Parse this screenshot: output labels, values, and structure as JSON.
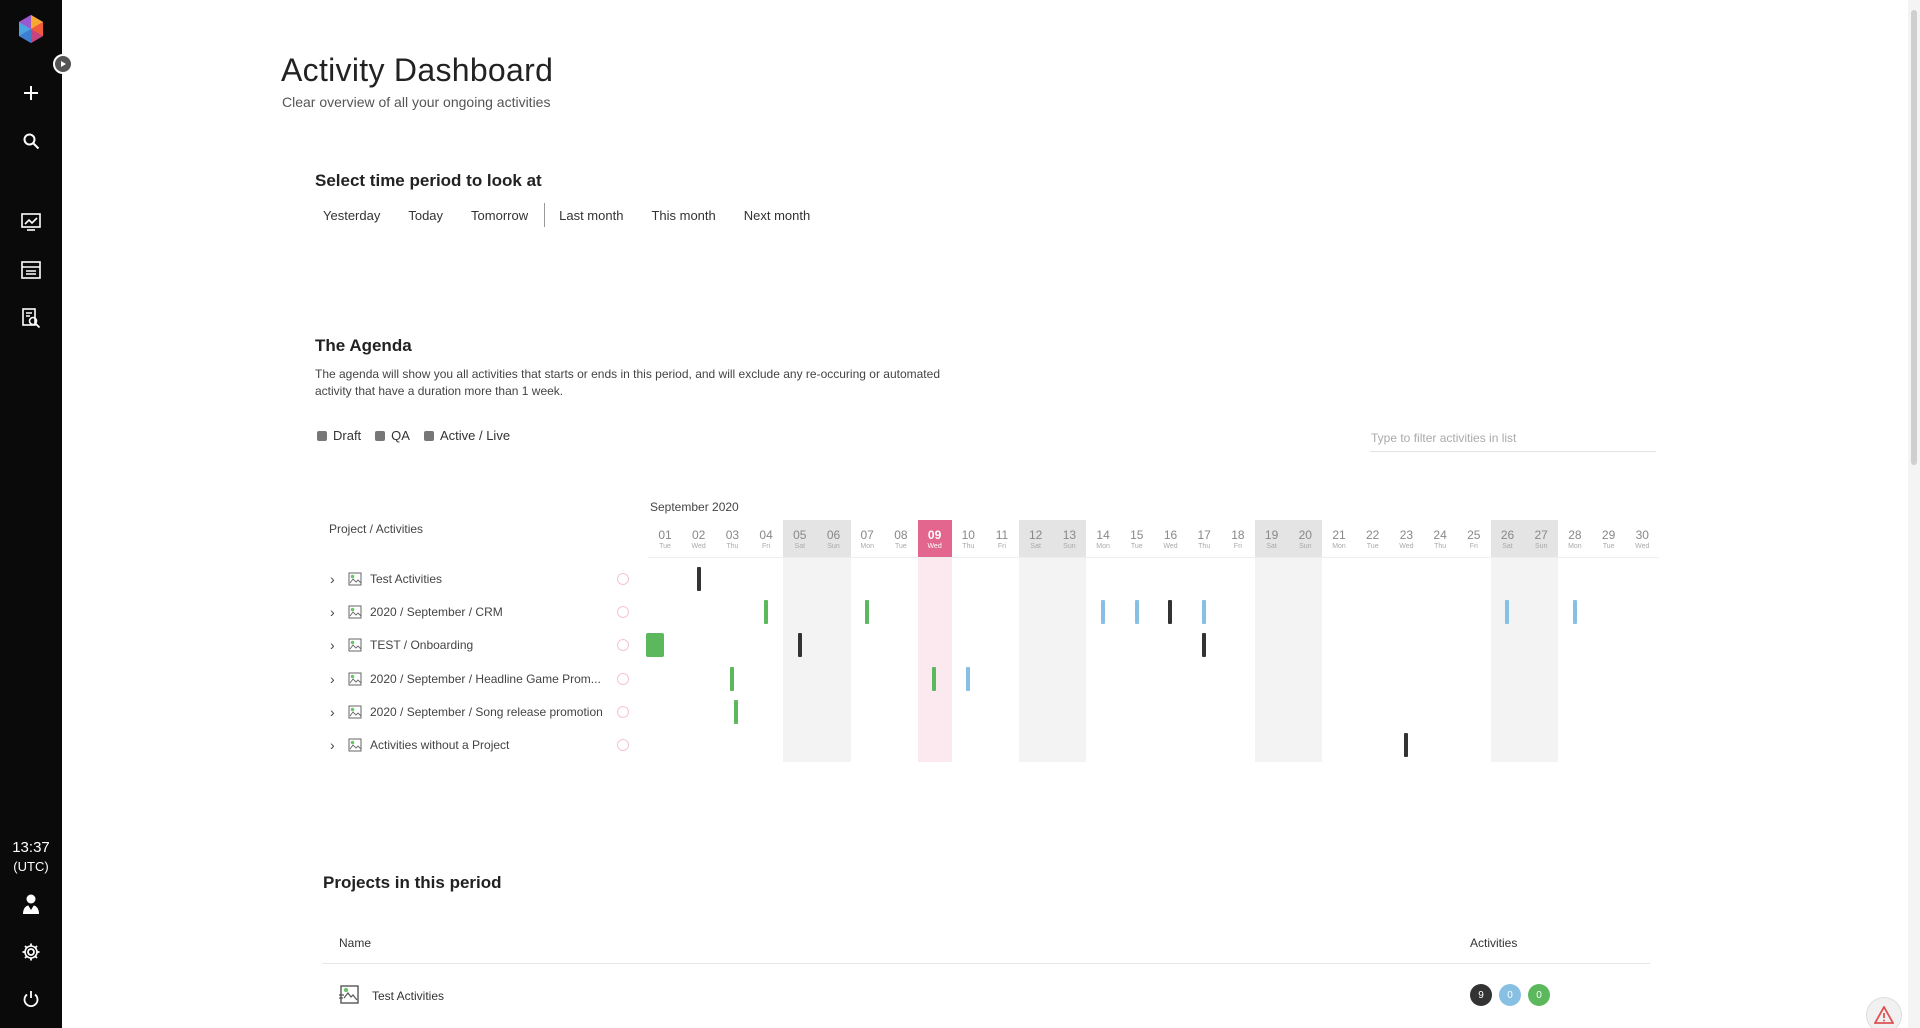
{
  "header": {
    "title": "Activity Dashboard",
    "subtitle": "Clear overview of all your ongoing activities"
  },
  "sidebar": {
    "clock_time": "13:37",
    "clock_tz": "(UTC)",
    "icons": [
      "logo-icon",
      "toggle-sidebar-icon",
      "add-icon",
      "search-icon",
      "dashboard-icon",
      "planner-icon",
      "report-icon",
      "user-icon",
      "gear-icon",
      "power-icon"
    ]
  },
  "period": {
    "title": "Select time period to look at",
    "buttons": [
      "Yesterday",
      "Today",
      "Tomorrow",
      "Last month",
      "This month",
      "Next month"
    ]
  },
  "agenda": {
    "title": "The Agenda",
    "description": "The agenda will show you all activities that starts or ends in this period, and will exclude any re-occuring or automated activity that have a duration more than 1 week.",
    "legend": [
      "Draft",
      "QA",
      "Active / Live"
    ],
    "filter_placeholder": "Type to filter activities in list",
    "column_header": "Project / Activities",
    "month": "September 2020",
    "today_index": 8,
    "days": [
      {
        "num": "01",
        "name": "Tue"
      },
      {
        "num": "02",
        "name": "Wed"
      },
      {
        "num": "03",
        "name": "Thu"
      },
      {
        "num": "04",
        "name": "Fri"
      },
      {
        "num": "05",
        "name": "Sat"
      },
      {
        "num": "06",
        "name": "Sun"
      },
      {
        "num": "07",
        "name": "Mon"
      },
      {
        "num": "08",
        "name": "Tue"
      },
      {
        "num": "09",
        "name": "Wed"
      },
      {
        "num": "10",
        "name": "Thu"
      },
      {
        "num": "11",
        "name": "Fri"
      },
      {
        "num": "12",
        "name": "Sat"
      },
      {
        "num": "13",
        "name": "Sun"
      },
      {
        "num": "14",
        "name": "Mon"
      },
      {
        "num": "15",
        "name": "Tue"
      },
      {
        "num": "16",
        "name": "Wed"
      },
      {
        "num": "17",
        "name": "Thu"
      },
      {
        "num": "18",
        "name": "Fri"
      },
      {
        "num": "19",
        "name": "Sat"
      },
      {
        "num": "20",
        "name": "Sun"
      },
      {
        "num": "21",
        "name": "Mon"
      },
      {
        "num": "22",
        "name": "Tue"
      },
      {
        "num": "23",
        "name": "Wed"
      },
      {
        "num": "24",
        "name": "Thu"
      },
      {
        "num": "25",
        "name": "Fri"
      },
      {
        "num": "26",
        "name": "Sat"
      },
      {
        "num": "27",
        "name": "Sun"
      },
      {
        "num": "28",
        "name": "Mon"
      },
      {
        "num": "29",
        "name": "Tue"
      },
      {
        "num": "30",
        "name": "Wed"
      }
    ],
    "rows": [
      {
        "label": "Test Activities",
        "events": [
          {
            "day": 2,
            "status": "draft"
          }
        ]
      },
      {
        "label": "2020 / September / CRM",
        "events": [
          {
            "day": 4,
            "status": "live"
          },
          {
            "day": 7,
            "status": "live"
          },
          {
            "day": 14,
            "status": "qa"
          },
          {
            "day": 15,
            "status": "qa"
          },
          {
            "day": 16,
            "status": "draft"
          },
          {
            "day": 17,
            "status": "qa"
          },
          {
            "day": 26,
            "status": "qa"
          },
          {
            "day": 28,
            "status": "qa"
          }
        ]
      },
      {
        "label": "TEST / Onboarding",
        "events": [
          {
            "day": 1,
            "status": "live-block"
          },
          {
            "day": 5,
            "status": "draft"
          },
          {
            "day": 17,
            "status": "draft"
          }
        ]
      },
      {
        "label": "2020 / September / Headline Game Prom...",
        "events": [
          {
            "day": 3,
            "status": "live"
          },
          {
            "day": 9,
            "status": "live"
          },
          {
            "day": 10,
            "status": "qa"
          }
        ]
      },
      {
        "label": "2020 / September / Song release promotion",
        "events": [
          {
            "day": 3,
            "status": "live",
            "offset": 4
          }
        ]
      },
      {
        "label": "Activities without a Project",
        "events": [
          {
            "day": 23,
            "status": "draft"
          }
        ]
      }
    ]
  },
  "projects": {
    "title": "Projects in this period",
    "col_name": "Name",
    "col_activities": "Activities",
    "rows": [
      {
        "name": "Test Activities",
        "counts": [
          "9",
          "0",
          "0"
        ]
      }
    ]
  },
  "colors": {
    "draft": "#333333",
    "qa": "#87c0e3",
    "live": "#5cb85c",
    "today": "#e2668e"
  }
}
